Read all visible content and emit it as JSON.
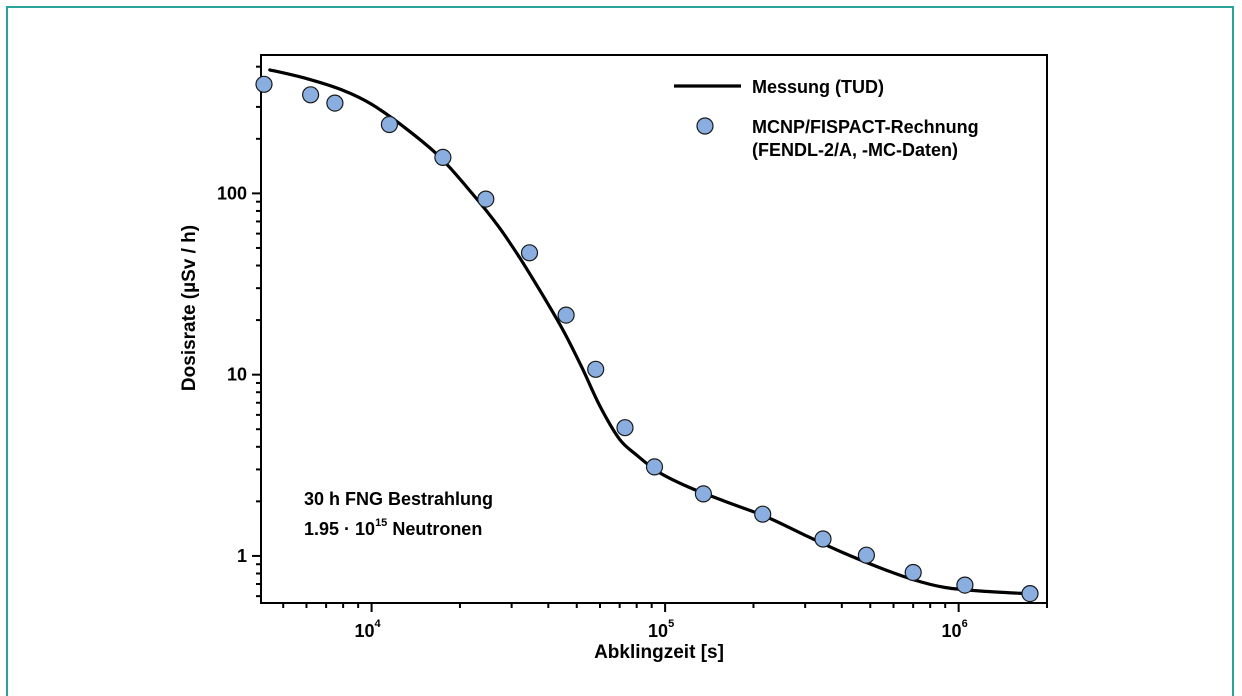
{
  "chart_data": {
    "type": "line",
    "xscale": "log",
    "yscale": "log",
    "xlim": [
      4200,
      2000000
    ],
    "ylim": [
      0.55,
      580
    ],
    "xlabel": "Abklingzeit [s]",
    "ylabel": "Dosisrate  (µSv / h)",
    "x_ticks": [
      {
        "value": 10000,
        "base": "10",
        "exp": "4"
      },
      {
        "value": 100000,
        "base": "10",
        "exp": "5"
      },
      {
        "value": 1000000,
        "base": "10",
        "exp": "6"
      }
    ],
    "y_ticks": [
      {
        "value": 1,
        "label": "1"
      },
      {
        "value": 10,
        "label": "10"
      },
      {
        "value": 100,
        "label": "100"
      }
    ],
    "legend": {
      "placement": "top-right",
      "line_label": "Messung (TUD)",
      "marker_label_line1": "MCNP/FISPACT-Rechnung",
      "marker_label_line2": "(FENDL-2/A, -MC-Daten)"
    },
    "annotation": {
      "line1": "30 h FNG Bestrahlung",
      "line2_prefix": "1.95 · 10",
      "line2_exp": "15",
      "line2_suffix": " Neutronen"
    },
    "series": [
      {
        "name": "Messung (TUD)",
        "type": "line",
        "color": "#000000",
        "x": [
          4500,
          6000,
          8000,
          10000,
          13000,
          17000,
          22000,
          27000,
          32000,
          38000,
          45000,
          52000,
          60000,
          70000,
          80000,
          95000,
          120000,
          160000,
          220000,
          300000,
          400000,
          550000,
          700000,
          900000,
          1200000,
          1700000
        ],
        "y": [
          480,
          430,
          370,
          310,
          230,
          160,
          100,
          66,
          44,
          28,
          17.5,
          11,
          6.7,
          4.4,
          3.6,
          2.9,
          2.4,
          2.0,
          1.65,
          1.3,
          1.05,
          0.85,
          0.74,
          0.67,
          0.64,
          0.62
        ]
      },
      {
        "name": "MCNP/FISPACT-Rechnung",
        "type": "scatter",
        "color": "#8aaee0",
        "x": [
          4300,
          6200,
          7500,
          11500,
          17500,
          24500,
          34500,
          46000,
          58000,
          73000,
          92000,
          135000,
          215000,
          345000,
          485000,
          700000,
          1050000,
          1750000
        ],
        "y": [
          400,
          350,
          315,
          240,
          158,
          93,
          47,
          21.3,
          10.7,
          5.1,
          3.1,
          2.2,
          1.7,
          1.24,
          1.01,
          0.81,
          0.69,
          0.62
        ]
      }
    ]
  }
}
